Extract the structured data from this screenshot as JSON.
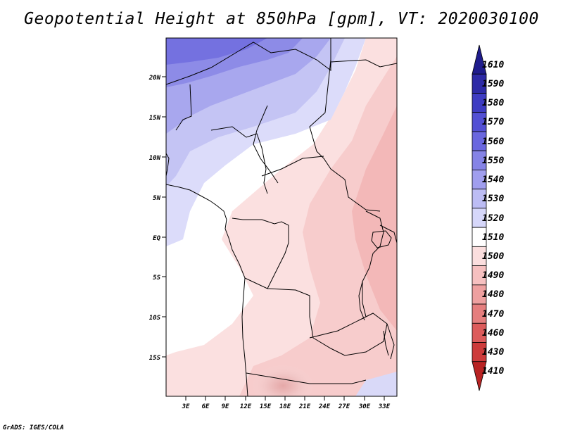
{
  "title": "Geopotential Height at 850hPa [gpm], VT: 2020030100",
  "credit": "GrADS: IGES/COLA",
  "map": {
    "lat_ticks": [
      "20N",
      "15N",
      "10N",
      "5N",
      "EQ",
      "5S",
      "10S",
      "15S"
    ],
    "lon_ticks": [
      "3E",
      "6E",
      "9E",
      "12E",
      "15E",
      "18E",
      "21E",
      "24E",
      "27E",
      "30E",
      "33E"
    ]
  },
  "colorbar": {
    "labels": [
      "1610",
      "1590",
      "1580",
      "1570",
      "1560",
      "1550",
      "1540",
      "1530",
      "1520",
      "1510",
      "1500",
      "1490",
      "1480",
      "1470",
      "1460",
      "1430",
      "1410"
    ],
    "colors": [
      "#1f1c8c",
      "#2d2aa6",
      "#3e3cc2",
      "#5350d4",
      "#6a67df",
      "#8583e6",
      "#a09eee",
      "#bcbcf4",
      "#d6d7fa",
      "#ffffff",
      "#fbdede",
      "#f6c0c0",
      "#eea0a0",
      "#e57e7e",
      "#dc5b5b",
      "#cd3b3b",
      "#b82323"
    ]
  }
}
